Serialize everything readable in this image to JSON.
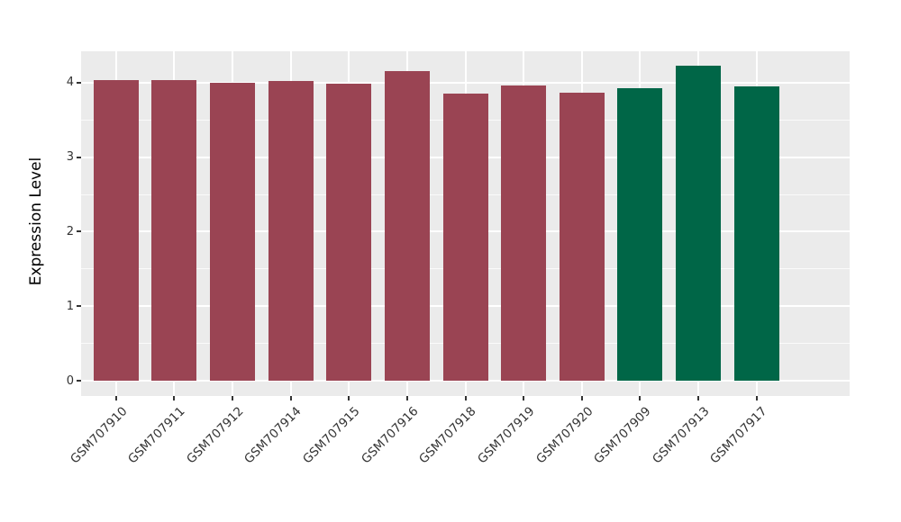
{
  "chart_data": {
    "type": "bar",
    "title": "",
    "xlabel": "",
    "ylabel": "Expression Level",
    "categories": [
      "GSM707910",
      "GSM707911",
      "GSM707912",
      "GSM707914",
      "GSM707915",
      "GSM707916",
      "GSM707918",
      "GSM707919",
      "GSM707920",
      "GSM707909",
      "GSM707913",
      "GSM707917"
    ],
    "values": [
      4.03,
      4.03,
      4.0,
      4.02,
      3.98,
      4.15,
      3.85,
      3.96,
      3.87,
      3.92,
      4.23,
      3.95
    ],
    "bar_colors": [
      "#9A4453",
      "#9A4453",
      "#9A4453",
      "#9A4453",
      "#9A4453",
      "#9A4453",
      "#9A4453",
      "#9A4453",
      "#9A4453",
      "#006647",
      "#006647",
      "#006647"
    ],
    "yticks": [
      0,
      1,
      2,
      3,
      4
    ],
    "ytick_labels": [
      "0",
      "1",
      "2",
      "3",
      "4"
    ],
    "ylim": [
      -0.205,
      4.42
    ],
    "grid": "on",
    "legend": "none",
    "colors": {
      "bar_red": "#9A4453",
      "bar_green": "#006647",
      "panel_background": "#EBEBEB",
      "grid_line": "#FFFFFF",
      "tick_text": "#333333",
      "axis_title_text": "#000000"
    }
  }
}
